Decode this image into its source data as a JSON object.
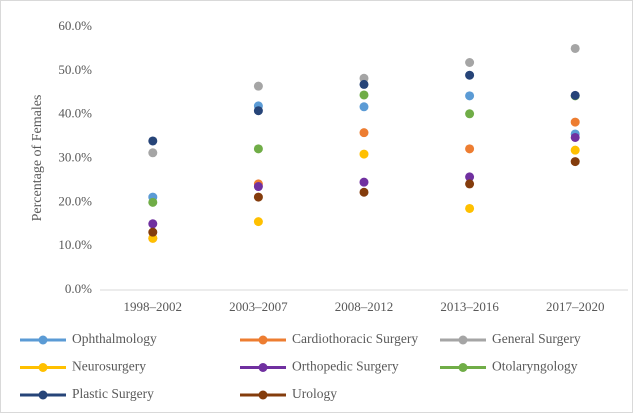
{
  "chart_data": {
    "type": "line",
    "y_label": "Percentage of Females",
    "categories": [
      "1998–2002",
      "2003–2007",
      "2008–2012",
      "2013–2016",
      "2017–2020"
    ],
    "ylim": [
      0,
      60
    ],
    "yticks": [
      {
        "value": 0,
        "label": "0.0%"
      },
      {
        "value": 10,
        "label": "10.0%"
      },
      {
        "value": 20,
        "label": "20.0%"
      },
      {
        "value": 30,
        "label": "30.0%"
      },
      {
        "value": 40,
        "label": "40.0%"
      },
      {
        "value": 50,
        "label": "50.0%"
      },
      {
        "value": 60,
        "label": "60.0%"
      }
    ],
    "grid": false,
    "legend": "bottom",
    "series": [
      {
        "name": "Ophthalmology",
        "color": "#5b9bd5",
        "values": [
          21.2,
          42.0,
          41.8,
          44.3,
          35.6
        ]
      },
      {
        "name": "Cardiothoracic Surgery",
        "color": "#ed7d31",
        "values": [
          11.8,
          24.2,
          35.9,
          32.2,
          38.3
        ]
      },
      {
        "name": "General Surgery",
        "color": "#a5a5a5",
        "values": [
          31.3,
          46.5,
          48.3,
          51.9,
          55.1
        ]
      },
      {
        "name": "Neurosurgery",
        "color": "#ffc000",
        "values": [
          11.8,
          15.6,
          31.0,
          18.6,
          31.9
        ]
      },
      {
        "name": "Orthopedic Surgery",
        "color": "#7030a0",
        "values": [
          15.1,
          23.6,
          24.6,
          25.8,
          34.8
        ]
      },
      {
        "name": "Otolaryngology",
        "color": "#70ad47",
        "values": [
          20.0,
          32.2,
          44.5,
          40.2,
          44.3
        ]
      },
      {
        "name": "Plastic Surgery",
        "color": "#264478",
        "values": [
          34.0,
          40.9,
          46.9,
          49.0,
          44.4
        ]
      },
      {
        "name": "Urology",
        "color": "#843c0c",
        "values": [
          13.2,
          21.2,
          22.3,
          24.2,
          29.3
        ]
      }
    ]
  }
}
